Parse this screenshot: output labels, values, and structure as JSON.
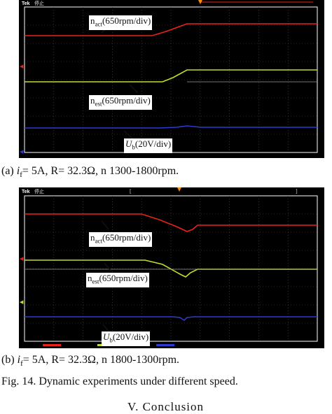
{
  "figure": {
    "panel_a": {
      "tek": "Tek",
      "status": "停止",
      "labels": {
        "n_act": {
          "base": "n",
          "sub": "act",
          "rest": "(650rpm/div)"
        },
        "n_est": {
          "base": "n",
          "sub": "est",
          "rest": "(650rpm/div)"
        },
        "u_b": {
          "base": "U",
          "sub": "b",
          "rest": "(20V/div)"
        }
      },
      "caption": {
        "prefix": "(a) ",
        "var": "i",
        "sub": "f",
        "rest": "= 5A, R= 32.3Ω, n 1300-1800rpm."
      }
    },
    "panel_b": {
      "tek": "Tek",
      "status": "停止",
      "labels": {
        "n_act": {
          "base": "n",
          "sub": "act",
          "rest": "(650rpm/div)"
        },
        "n_est": {
          "base": "n",
          "sub": "est",
          "rest": "(650rpm/div)"
        },
        "u_b": {
          "base": "U",
          "sub": "b",
          "rest": "(20V/div)"
        }
      },
      "caption": {
        "prefix": "(b) ",
        "var": "i",
        "sub": "f",
        "rest": "= 5A, R= 32.3Ω, n 1800-1300rpm."
      }
    },
    "fig_caption": "Fig. 14. Dynamic experiments under different speed.",
    "next_section": "V. Conclusion",
    "colors": {
      "n_act": "#e8231c",
      "n_est": "#c6dd2b",
      "u_b": "#2b3ad0",
      "grid": "#ffffff",
      "background": "#000000"
    }
  }
}
